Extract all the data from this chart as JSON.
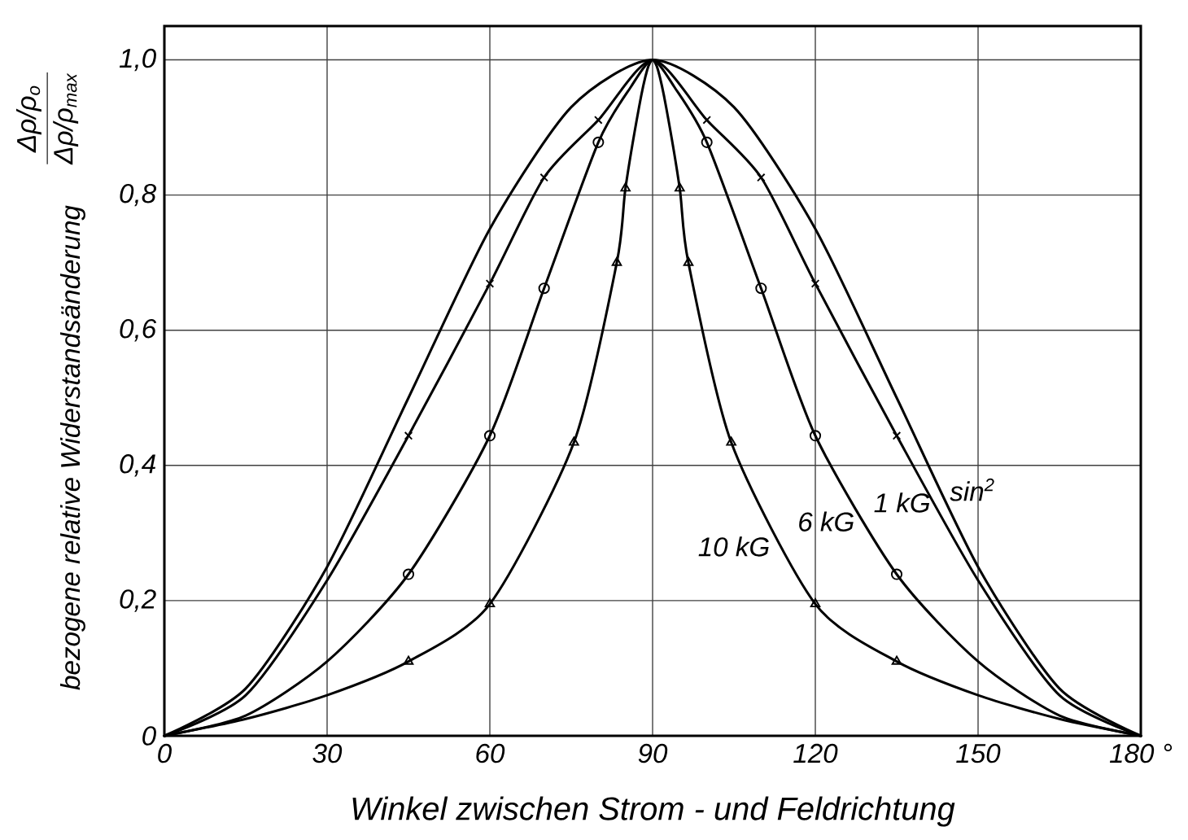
{
  "chart_data": {
    "type": "line",
    "xlabel": "Winkel  zwischen  Strom -  und  Feldrichtung",
    "ylabel": "bezogene   relative   Widerstandsänderung",
    "annotations": [
      "Δρ/ρ$_{o}$",
      "Δρ/ρ$_{max}$"
    ],
    "xlim": [
      0,
      180
    ],
    "ylim": [
      0,
      1.05
    ],
    "xticks": [
      0,
      30,
      60,
      90,
      120,
      150,
      {
        "value": 180,
        "label": "180 °"
      }
    ],
    "yticks": [
      0,
      {
        "value": 0.2,
        "label": "0,2"
      },
      {
        "value": 0.4,
        "label": "0,4"
      },
      {
        "value": 0.6,
        "label": "0,6"
      },
      {
        "value": 0.8,
        "label": "0,8"
      },
      {
        "value": 1.0,
        "label": "1,0"
      }
    ],
    "grid": true,
    "series": [
      {
        "name": "sin$^{2}$",
        "color": "#000000",
        "marker": "none",
        "x": [
          0,
          15,
          30,
          45,
          60,
          75,
          90,
          105,
          120,
          135,
          150,
          165,
          180
        ],
        "values": [
          0,
          0.07,
          0.25,
          0.5,
          0.75,
          0.93,
          1,
          0.93,
          0.75,
          0.5,
          0.25,
          0.07,
          0
        ]
      },
      {
        "name": "1 kG",
        "color": "#000000",
        "marker": "none",
        "x": [
          0,
          15,
          30,
          45,
          60,
          70,
          80,
          90,
          100,
          110,
          120,
          135,
          150,
          165,
          180
        ],
        "values": [
          0,
          0.06,
          0.23,
          0.444,
          0.669,
          0.826,
          0.911,
          1,
          0.911,
          0.826,
          0.669,
          0.444,
          0.23,
          0.06,
          0
        ]
      },
      {
        "name": "6 kG",
        "color": "#000000",
        "marker": "none",
        "x": [
          0,
          15,
          30,
          45,
          60,
          70,
          80,
          86,
          90,
          94,
          100,
          110,
          120,
          135,
          150,
          165,
          180
        ],
        "values": [
          0,
          0.03,
          0.11,
          0.239,
          0.444,
          0.662,
          0.878,
          0.96,
          1,
          0.96,
          0.878,
          0.662,
          0.444,
          0.239,
          0.11,
          0.03,
          0
        ]
      },
      {
        "name": "10 kG",
        "color": "#000000",
        "marker": "none",
        "x": [
          0,
          15,
          30,
          45,
          60,
          75.5,
          83.4,
          85,
          87.5,
          89,
          90,
          91,
          92.5,
          95,
          96.6,
          104.5,
          120,
          135,
          150,
          165,
          180
        ],
        "values": [
          0,
          0.025,
          0.06,
          0.11,
          0.195,
          0.434,
          0.7,
          0.81,
          0.93,
          0.985,
          1,
          0.985,
          0.93,
          0.81,
          0.7,
          0.434,
          0.195,
          0.11,
          0.06,
          0.025,
          0
        ]
      },
      {
        "type": "scatter",
        "color": "#000000",
        "marker": "cross",
        "x": [
          45,
          60,
          70,
          80,
          100,
          110,
          120,
          135
        ],
        "values": [
          0.444,
          0.669,
          0.826,
          0.911,
          0.911,
          0.826,
          0.669,
          0.444
        ]
      },
      {
        "type": "scatter",
        "color": "#000000",
        "marker": "circle",
        "x": [
          45,
          60,
          70,
          80,
          100,
          110,
          120,
          135
        ],
        "values": [
          0.239,
          0.444,
          0.662,
          0.878,
          0.878,
          0.662,
          0.444,
          0.239
        ]
      },
      {
        "type": "scatter",
        "color": "#000000",
        "marker": "triangle",
        "x": [
          45,
          60,
          75.5,
          83.4,
          85,
          95,
          96.6,
          104.5,
          120,
          135
        ],
        "values": [
          0.11,
          0.195,
          0.434,
          0.7,
          0.81,
          0.81,
          0.7,
          0.434,
          0.195,
          0.11
        ]
      }
    ]
  }
}
